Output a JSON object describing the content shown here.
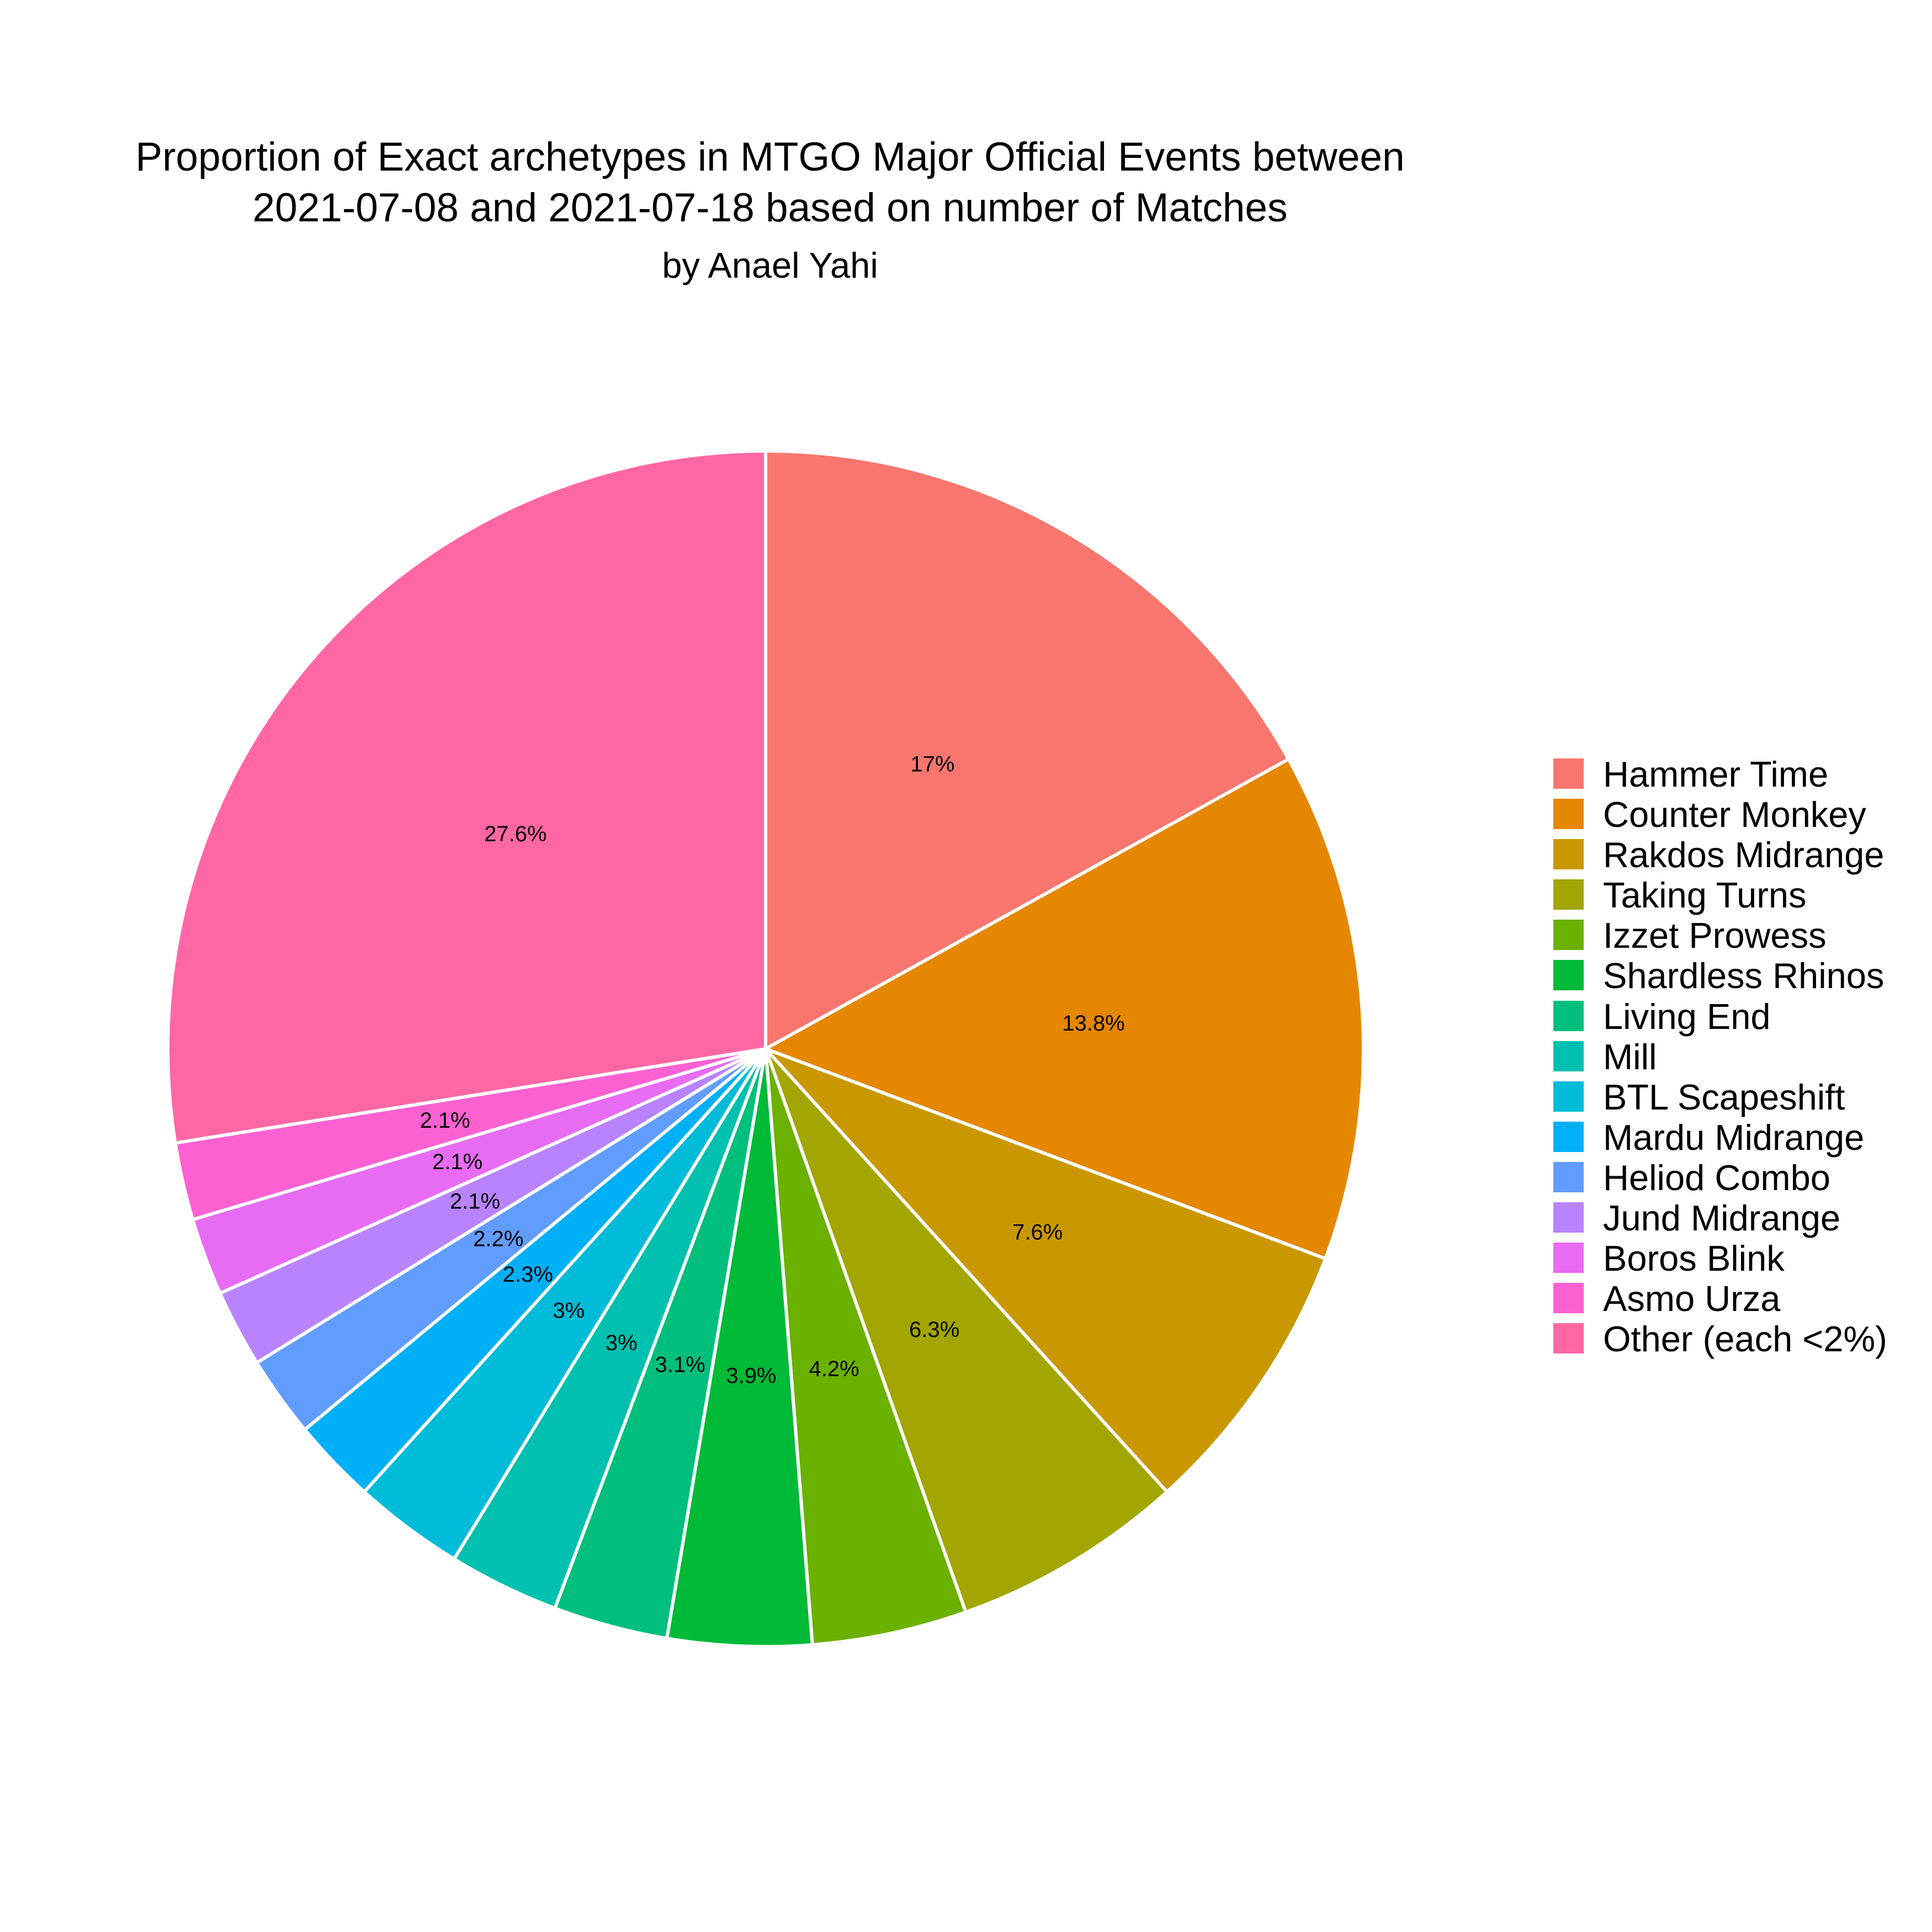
{
  "title_line1": "Proportion of Exact archetypes in MTGO Major Official Events between",
  "title_line2": "2021-07-08 and 2021-07-18 based on number of Matches",
  "subtitle": "by Anael Yahi",
  "chart_data": {
    "type": "pie",
    "title": "Proportion of Exact archetypes in MTGO Major Official Events between 2021-07-08 and 2021-07-18 based on number of Matches",
    "subtitle": "by Anael Yahi",
    "legend_position": "right",
    "slice_border_color": "#ffffff",
    "slices": [
      {
        "name": "Hammer Time",
        "value": 17.0,
        "label": "17%",
        "color": "#F8766D"
      },
      {
        "name": "Counter Monkey",
        "value": 13.8,
        "label": "13.8%",
        "color": "#E58700"
      },
      {
        "name": "Rakdos Midrange",
        "value": 7.6,
        "label": "7.6%",
        "color": "#C99800"
      },
      {
        "name": "Taking Turns",
        "value": 6.3,
        "label": "6.3%",
        "color": "#A3A500"
      },
      {
        "name": "Izzet Prowess",
        "value": 4.2,
        "label": "4.2%",
        "color": "#6BB100"
      },
      {
        "name": "Shardless Rhinos",
        "value": 3.9,
        "label": "3.9%",
        "color": "#00BA38"
      },
      {
        "name": "Living End",
        "value": 3.1,
        "label": "3.1%",
        "color": "#00BF7D"
      },
      {
        "name": "Mill",
        "value": 3.0,
        "label": "3%",
        "color": "#00C0AF"
      },
      {
        "name": "BTL Scapeshift",
        "value": 3.0,
        "label": "3%",
        "color": "#00BCD8"
      },
      {
        "name": "Mardu Midrange",
        "value": 2.3,
        "label": "2.3%",
        "color": "#00B0F6"
      },
      {
        "name": "Heliod Combo",
        "value": 2.2,
        "label": "2.2%",
        "color": "#619CFF"
      },
      {
        "name": "Jund Midrange",
        "value": 2.1,
        "label": "2.1%",
        "color": "#B983FF"
      },
      {
        "name": "Boros Blink",
        "value": 2.1,
        "label": "2.1%",
        "color": "#E76BF3"
      },
      {
        "name": "Asmo Urza",
        "value": 2.1,
        "label": "2.1%",
        "color": "#FD61D1"
      },
      {
        "name": "Other (each <2%)",
        "value": 27.6,
        "label": "27.6%",
        "color": "#FF67A4"
      }
    ]
  }
}
